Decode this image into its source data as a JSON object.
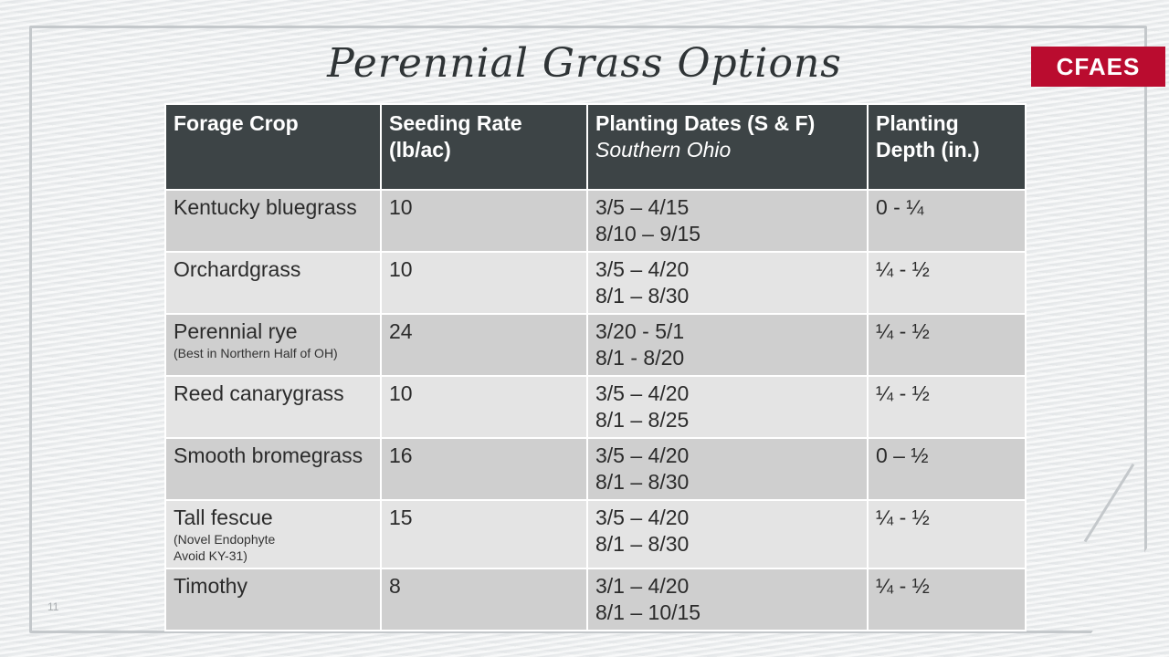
{
  "title": "Perennial Grass Options",
  "logo": "CFAES",
  "slide_number": "11",
  "footer_text": "",
  "table": {
    "headers": {
      "crop": "Forage Crop",
      "rate_line1": "Seeding Rate",
      "rate_line2": "(lb/ac)",
      "dates_line1": "Planting Dates (S & F)",
      "dates_line2": "Southern Ohio",
      "depth_line1": "Planting",
      "depth_line2": "Depth (in.)"
    },
    "rows": [
      {
        "crop": "Kentucky bluegrass",
        "note1": "",
        "note2": "",
        "rate": "10",
        "spring": "3/5 – 4/15",
        "fall": "8/10 – 9/15",
        "depth": "0 - ¼"
      },
      {
        "crop": "Orchardgrass",
        "note1": "",
        "note2": "",
        "rate": "10",
        "spring": "3/5 – 4/20",
        "fall": "8/1 – 8/30",
        "depth": "¼ - ½"
      },
      {
        "crop": "Perennial rye",
        "note1": "(Best in Northern Half of OH)",
        "note2": "",
        "rate": "24",
        "spring": "3/20 - 5/1",
        "fall": "8/1 - 8/20",
        "depth": "¼ - ½"
      },
      {
        "crop": "Reed canarygrass",
        "note1": "",
        "note2": "",
        "rate": "10",
        "spring": "3/5 – 4/20",
        "fall": "8/1 – 8/25",
        "depth": "¼ - ½"
      },
      {
        "crop": "Smooth bromegrass",
        "note1": "",
        "note2": "",
        "rate": "16",
        "spring": "3/5 – 4/20",
        "fall": "8/1 – 8/30",
        "depth": "0 – ½"
      },
      {
        "crop": "Tall fescue",
        "note1": "(Novel Endophyte",
        "note2": "Avoid KY-31)",
        "rate": "15",
        "spring": "3/5 – 4/20",
        "fall": "8/1 – 8/30",
        "depth": "¼ - ½"
      },
      {
        "crop": "Timothy",
        "note1": "",
        "note2": "",
        "rate": "8",
        "spring": "3/1 – 4/20",
        "fall": "8/1 – 10/15",
        "depth": "¼ - ½"
      }
    ]
  }
}
